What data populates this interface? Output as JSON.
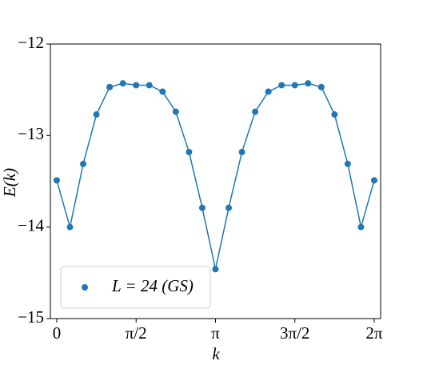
{
  "chart_data": {
    "type": "line",
    "xlabel": "k",
    "ylabel": "E(k)",
    "x": [
      0,
      0.2618,
      0.5236,
      0.7854,
      1.0472,
      1.309,
      1.5708,
      1.8326,
      2.0944,
      2.3562,
      2.618,
      2.8798,
      3.1416,
      3.4034,
      3.6652,
      3.927,
      4.1888,
      4.4506,
      4.7124,
      4.9742,
      5.236,
      5.4978,
      5.7596,
      6.0214,
      6.2832
    ],
    "series": [
      {
        "name": "L = 24 (GS)",
        "color": "#1f77b4",
        "values": [
          -13.49,
          -14.0,
          -13.31,
          -12.77,
          -12.47,
          -12.43,
          -12.45,
          -12.45,
          -12.52,
          -12.74,
          -13.18,
          -13.79,
          -14.46,
          -13.79,
          -13.18,
          -12.74,
          -12.52,
          -12.45,
          -12.45,
          -12.43,
          -12.47,
          -12.77,
          -13.31,
          -14.0,
          -13.49
        ]
      }
    ],
    "xlim": [
      -0.126,
      6.41
    ],
    "ylim": [
      -15,
      -12
    ],
    "xticks": [
      0,
      {
        "value": 1.5708,
        "label": "π/2"
      },
      {
        "value": 3.1416,
        "label": "π"
      },
      {
        "value": 4.7124,
        "label": "3π/2"
      },
      {
        "value": 6.2832,
        "label": "2π"
      }
    ],
    "yticks": [
      {
        "value": -15,
        "label": "−15"
      },
      {
        "value": -14,
        "label": "−14"
      },
      {
        "value": -13,
        "label": "−13"
      },
      {
        "value": -12,
        "label": "−12"
      }
    ],
    "grid": false,
    "legend": "lower left"
  }
}
